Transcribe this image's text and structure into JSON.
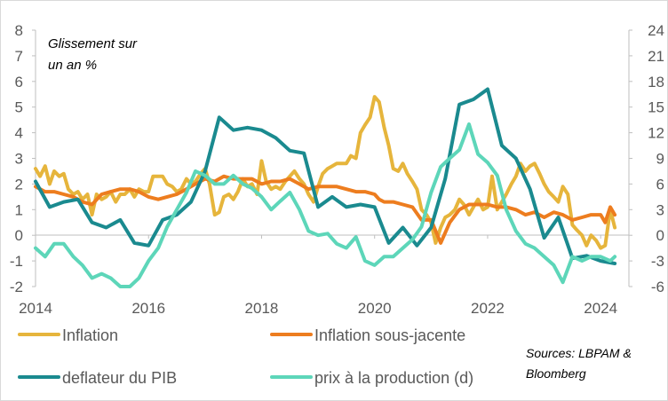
{
  "chart_data": {
    "type": "line",
    "annotation": [
      "Glissement sur",
      "un an %"
    ],
    "source": [
      "Sources: LBPAM &",
      "Bloomberg"
    ],
    "x_ticks": [
      "2014",
      "2016",
      "2018",
      "2020",
      "2022",
      "2024"
    ],
    "y_left_ticks": [
      "8",
      "7",
      "6",
      "5",
      "4",
      "3",
      "2",
      "1",
      "0",
      "-1",
      "-2"
    ],
    "y_right_ticks": [
      "24",
      "21",
      "18",
      "15",
      "12",
      "9",
      "6",
      "3",
      "0",
      "-3",
      "-6"
    ],
    "y_left_range": [
      -2,
      8
    ],
    "y_right_range": [
      -6,
      24
    ],
    "x_range": [
      2014.0,
      2024.5
    ],
    "colors": {
      "inflation": "#e6b53c",
      "core": "#ed7d1f",
      "deflator": "#1a8a8f",
      "ppi": "#5dd6b9",
      "axis": "#bfbfbf",
      "text": "#595959"
    },
    "series": [
      {
        "name": "Inflation",
        "axis": "left",
        "color": "#e6b53c",
        "x": [
          2014.0,
          2014.08,
          2014.17,
          2014.25,
          2014.33,
          2014.42,
          2014.5,
          2014.58,
          2014.67,
          2014.75,
          2014.83,
          2014.92,
          2015.0,
          2015.08,
          2015.17,
          2015.25,
          2015.33,
          2015.42,
          2015.5,
          2015.58,
          2015.67,
          2015.75,
          2015.83,
          2015.92,
          2016.0,
          2016.08,
          2016.17,
          2016.25,
          2016.33,
          2016.42,
          2016.5,
          2016.58,
          2016.67,
          2016.75,
          2016.83,
          2016.92,
          2017.0,
          2017.08,
          2017.17,
          2017.25,
          2017.33,
          2017.42,
          2017.5,
          2017.58,
          2017.67,
          2017.75,
          2017.83,
          2017.92,
          2018.0,
          2018.08,
          2018.17,
          2018.25,
          2018.33,
          2018.42,
          2018.5,
          2018.58,
          2018.67,
          2018.75,
          2018.83,
          2018.92,
          2019.0,
          2019.08,
          2019.17,
          2019.25,
          2019.33,
          2019.42,
          2019.5,
          2019.58,
          2019.67,
          2019.75,
          2019.83,
          2019.92,
          2020.0,
          2020.08,
          2020.17,
          2020.25,
          2020.33,
          2020.42,
          2020.5,
          2020.58,
          2020.67,
          2020.75,
          2020.83,
          2020.92,
          2021.0,
          2021.08,
          2021.17,
          2021.25,
          2021.33,
          2021.42,
          2021.5,
          2021.58,
          2021.67,
          2021.75,
          2021.83,
          2021.92,
          2022.0,
          2022.08,
          2022.17,
          2022.25,
          2022.33,
          2022.42,
          2022.5,
          2022.58,
          2022.67,
          2022.75,
          2022.83,
          2022.92,
          2023.0,
          2023.08,
          2023.17,
          2023.25,
          2023.33,
          2023.42,
          2023.5,
          2023.58,
          2023.67,
          2023.75,
          2023.83,
          2023.92,
          2024.0,
          2024.08,
          2024.17,
          2024.25
        ],
        "values": [
          2.6,
          2.3,
          2.7,
          2.0,
          2.5,
          2.3,
          2.4,
          1.8,
          1.6,
          1.7,
          1.4,
          1.6,
          0.8,
          1.6,
          1.4,
          1.5,
          1.7,
          1.3,
          1.6,
          1.6,
          1.8,
          1.5,
          1.8,
          1.7,
          1.7,
          2.3,
          2.3,
          2.3,
          2.0,
          1.9,
          1.7,
          1.8,
          2.2,
          2.0,
          2.1,
          2.4,
          2.6,
          2.0,
          0.8,
          0.9,
          1.5,
          1.6,
          1.4,
          1.7,
          2.2,
          1.9,
          2.0,
          1.6,
          2.9,
          2.1,
          1.8,
          1.9,
          1.8,
          2.1,
          2.3,
          2.5,
          2.2,
          2.0,
          1.6,
          1.3,
          1.9,
          2.4,
          2.6,
          2.7,
          2.8,
          2.8,
          2.8,
          3.1,
          3.0,
          4.0,
          4.3,
          4.6,
          5.4,
          5.2,
          4.2,
          3.5,
          2.6,
          2.5,
          2.8,
          2.4,
          2.1,
          1.8,
          1.0,
          0.8,
          0.5,
          -0.3,
          0.3,
          0.7,
          0.8,
          1.0,
          1.4,
          1.2,
          0.8,
          1.1,
          1.4,
          1.0,
          1.1,
          2.3,
          1.0,
          1.3,
          1.6,
          2.0,
          2.3,
          2.8,
          2.5,
          2.7,
          2.8,
          2.4,
          2.0,
          1.7,
          1.5,
          1.3,
          1.9,
          1.6,
          0.4,
          0.2,
          0.0,
          -0.4,
          0.0,
          -0.2,
          -0.5,
          -0.4,
          1.0,
          0.3
        ]
      },
      {
        "name": "Inflation sous-jacente",
        "axis": "left",
        "color": "#ed7d1f",
        "x": [
          2014.0,
          2014.17,
          2014.33,
          2014.5,
          2014.67,
          2014.83,
          2015.0,
          2015.17,
          2015.33,
          2015.5,
          2015.67,
          2015.83,
          2016.0,
          2016.17,
          2016.33,
          2016.5,
          2016.67,
          2016.83,
          2017.0,
          2017.17,
          2017.33,
          2017.5,
          2017.67,
          2017.83,
          2018.0,
          2018.17,
          2018.33,
          2018.5,
          2018.67,
          2018.83,
          2019.0,
          2019.17,
          2019.33,
          2019.5,
          2019.67,
          2019.83,
          2020.0,
          2020.08,
          2020.17,
          2020.33,
          2020.5,
          2020.67,
          2020.83,
          2021.0,
          2021.17,
          2021.33,
          2021.5,
          2021.67,
          2021.83,
          2022.0,
          2022.17,
          2022.33,
          2022.5,
          2022.67,
          2022.83,
          2023.0,
          2023.17,
          2023.33,
          2023.5,
          2023.67,
          2023.83,
          2024.0,
          2024.08,
          2024.17,
          2024.25
        ],
        "values": [
          1.9,
          1.7,
          1.7,
          1.6,
          1.5,
          1.3,
          1.2,
          1.6,
          1.7,
          1.8,
          1.8,
          1.7,
          1.5,
          1.4,
          1.5,
          1.6,
          1.8,
          2.0,
          2.2,
          2.1,
          2.3,
          2.2,
          2.2,
          2.2,
          2.0,
          2.1,
          2.1,
          2.2,
          2.0,
          1.8,
          1.9,
          1.9,
          1.9,
          1.8,
          1.7,
          1.7,
          1.6,
          1.4,
          1.3,
          1.3,
          1.2,
          1.1,
          0.6,
          0.6,
          -0.3,
          0.5,
          1.0,
          1.2,
          1.2,
          1.2,
          1.1,
          1.1,
          1.0,
          0.8,
          0.9,
          0.7,
          0.9,
          0.8,
          0.6,
          0.7,
          0.8,
          0.8,
          0.5,
          1.1,
          0.8
        ]
      },
      {
        "name": "deflateur du PIB",
        "axis": "left",
        "color": "#1a8a8f",
        "x": [
          2014.0,
          2014.25,
          2014.5,
          2014.75,
          2015.0,
          2015.25,
          2015.5,
          2015.75,
          2016.0,
          2016.25,
          2016.5,
          2016.75,
          2017.0,
          2017.25,
          2017.5,
          2017.75,
          2018.0,
          2018.25,
          2018.5,
          2018.75,
          2019.0,
          2019.25,
          2019.5,
          2019.75,
          2020.0,
          2020.25,
          2020.5,
          2020.75,
          2021.0,
          2021.25,
          2021.5,
          2021.75,
          2022.0,
          2022.25,
          2022.5,
          2022.75,
          2023.0,
          2023.25,
          2023.5,
          2023.75,
          2024.0,
          2024.25
        ],
        "values": [
          2.1,
          1.1,
          1.3,
          1.4,
          0.5,
          0.3,
          0.6,
          -0.3,
          -0.4,
          0.6,
          0.8,
          1.3,
          2.5,
          4.6,
          4.1,
          4.2,
          4.1,
          3.8,
          3.3,
          3.2,
          1.1,
          1.5,
          1.1,
          1.2,
          1.1,
          -0.3,
          0.3,
          -0.4,
          0.3,
          2.2,
          5.1,
          5.3,
          5.7,
          3.5,
          3.0,
          1.8,
          -0.1,
          0.7,
          -0.9,
          -0.8,
          -1.0,
          -1.1
        ]
      },
      {
        "name": "prix à la production (d)",
        "axis": "right",
        "color": "#5dd6b9",
        "x": [
          2014.0,
          2014.17,
          2014.33,
          2014.5,
          2014.67,
          2014.83,
          2015.0,
          2015.17,
          2015.33,
          2015.5,
          2015.67,
          2015.83,
          2016.0,
          2016.17,
          2016.33,
          2016.5,
          2016.67,
          2016.83,
          2017.0,
          2017.17,
          2017.33,
          2017.5,
          2017.67,
          2017.83,
          2018.0,
          2018.17,
          2018.33,
          2018.5,
          2018.67,
          2018.83,
          2019.0,
          2019.17,
          2019.33,
          2019.5,
          2019.67,
          2019.83,
          2020.0,
          2020.17,
          2020.33,
          2020.5,
          2020.67,
          2020.83,
          2021.0,
          2021.17,
          2021.33,
          2021.5,
          2021.67,
          2021.83,
          2022.0,
          2022.17,
          2022.33,
          2022.5,
          2022.67,
          2022.83,
          2023.0,
          2023.17,
          2023.33,
          2023.5,
          2023.67,
          2023.83,
          2024.0,
          2024.17,
          2024.25
        ],
        "values": [
          -1.5,
          -2.5,
          -1.0,
          -1.0,
          -2.5,
          -3.5,
          -5.0,
          -4.5,
          -5.0,
          -6.0,
          -6.0,
          -5.0,
          -3.0,
          -1.5,
          1.0,
          3.0,
          5.0,
          7.5,
          7.0,
          6.0,
          6.0,
          7.0,
          6.0,
          5.5,
          4.5,
          3.0,
          4.0,
          5.0,
          3.0,
          0.5,
          0.0,
          0.2,
          -1.0,
          -1.5,
          -0.2,
          -3.0,
          -3.5,
          -2.5,
          -2.5,
          -1.5,
          -0.5,
          1.0,
          5.0,
          8.0,
          9.0,
          10.0,
          13.0,
          9.5,
          8.5,
          7.0,
          3.0,
          0.5,
          -1.0,
          -1.5,
          -2.5,
          -3.5,
          -5.5,
          -2.5,
          -3.0,
          -2.5,
          -2.5,
          -3.0,
          -2.5
        ]
      }
    ],
    "legend": [
      {
        "label": "Inflation",
        "color": "#e6b53c"
      },
      {
        "label": "Inflation sous-jacente",
        "color": "#ed7d1f"
      },
      {
        "label": "deflateur du PIB",
        "color": "#1a8a8f"
      },
      {
        "label": "prix à la production (d)",
        "color": "#5dd6b9"
      }
    ]
  }
}
